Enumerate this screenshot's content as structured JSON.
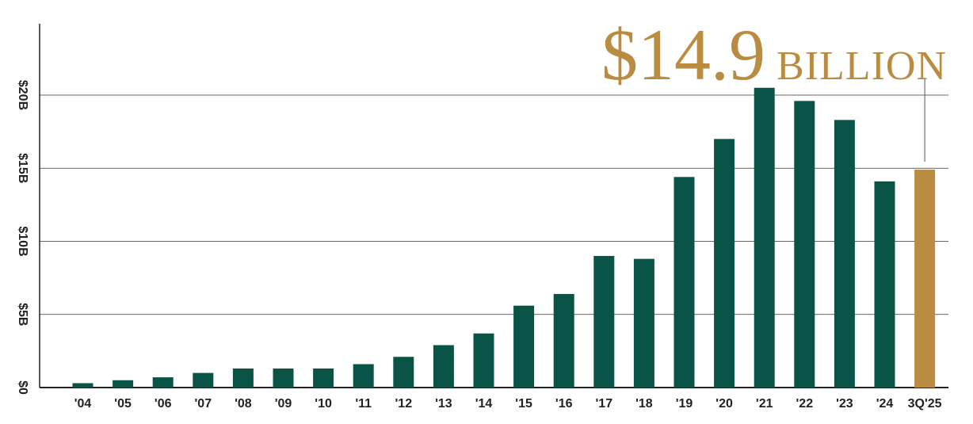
{
  "chart_data": {
    "type": "bar",
    "categories": [
      "'04",
      "'05",
      "'06",
      "'07",
      "'08",
      "'09",
      "'10",
      "'11",
      "'12",
      "'13",
      "'14",
      "'15",
      "'16",
      "'17",
      "'18",
      "'19",
      "'20",
      "'21",
      "'22",
      "'23",
      "'24",
      "3Q'25"
    ],
    "values": [
      0.3,
      0.5,
      0.7,
      1.0,
      1.3,
      1.3,
      1.3,
      1.6,
      2.1,
      2.9,
      3.7,
      5.6,
      6.4,
      9.0,
      8.8,
      14.4,
      17.0,
      20.5,
      19.6,
      18.3,
      14.1,
      14.9
    ],
    "highlight_index": 21,
    "ylim": [
      0,
      25
    ],
    "yticks": [
      {
        "value": 0,
        "label": "$0"
      },
      {
        "value": 5,
        "label": "$5B"
      },
      {
        "value": 10,
        "label": "$10B"
      },
      {
        "value": 15,
        "label": "$15B"
      },
      {
        "value": 20,
        "label": "$20B"
      }
    ],
    "grid": true,
    "callout": {
      "value": "$14.9",
      "unit": "BILLION"
    },
    "colors": {
      "bar": "#0a5447",
      "highlight": "#b98c42",
      "grid": "#333333",
      "axis": "#222222"
    }
  }
}
